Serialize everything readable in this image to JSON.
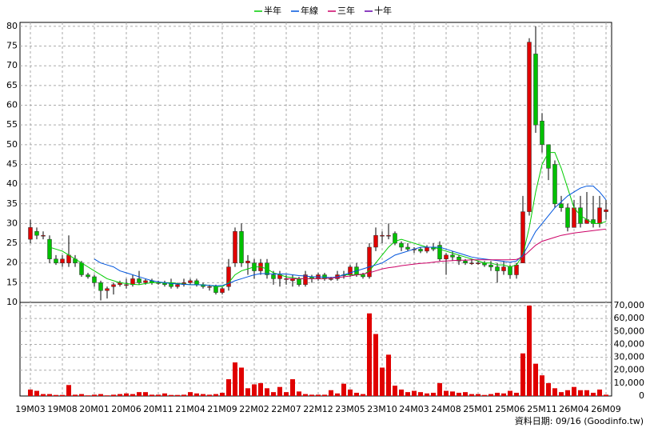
{
  "chart_data": {
    "type": "candlestick",
    "categories": [
      "19M03",
      null,
      null,
      null,
      null,
      "19M08",
      null,
      null,
      null,
      null,
      "20M01",
      null,
      null,
      null,
      null,
      "20M06",
      null,
      null,
      null,
      null,
      "20M11",
      null,
      null,
      null,
      null,
      "21M04",
      null,
      null,
      null,
      null,
      "21M09",
      null,
      null,
      null,
      null,
      "22M02",
      null,
      null,
      null,
      null,
      "22M07",
      null,
      null,
      null,
      null,
      "22M12",
      null,
      null,
      null,
      null,
      "23M05",
      null,
      null,
      null,
      null,
      "23M10",
      null,
      null,
      null,
      null,
      "24M03",
      null,
      null,
      null,
      null,
      "24M08",
      null,
      null,
      null,
      null,
      "25M01",
      null,
      null,
      null,
      null,
      "25M06",
      null,
      null,
      null,
      null,
      "25M11",
      null,
      null,
      null,
      null,
      "26M04",
      null,
      null,
      null,
      null,
      "26M09"
    ],
    "open": [
      26,
      28,
      27,
      26,
      21,
      20,
      20,
      21,
      20,
      17,
      16.5,
      15,
      13,
      14,
      14.5,
      14.5,
      14.5,
      16,
      15,
      15.5,
      15,
      15,
      15,
      14,
      14.5,
      15,
      15.5,
      14.5,
      14,
      14,
      12.5,
      14,
      20,
      28,
      20,
      20,
      18,
      20,
      17,
      16,
      16,
      15.5,
      16,
      14.5,
      16.5,
      16,
      17,
      16,
      16,
      17,
      17,
      19,
      17,
      16.5,
      24,
      27,
      27,
      27.5,
      25,
      24,
      23.5,
      23.5,
      23,
      24,
      24.5,
      21,
      22,
      21.5,
      20.5,
      20,
      20,
      20,
      19.5,
      19,
      18,
      19,
      17,
      20,
      33,
      73,
      56,
      50,
      45,
      35,
      34,
      29,
      34,
      30,
      31,
      30,
      33
    ],
    "high": [
      31,
      29,
      28,
      27,
      22,
      22,
      27,
      22,
      20.5,
      17.5,
      17,
      15.5,
      14,
      15,
      15.5,
      16,
      17,
      18,
      16,
      16,
      15.5,
      15.5,
      16,
      15,
      16,
      16,
      16,
      15,
      14.5,
      14.5,
      14,
      21,
      29,
      30,
      22,
      21,
      21,
      21,
      18,
      18,
      17,
      17,
      16.5,
      18,
      17,
      17.5,
      17.5,
      16.5,
      18,
      18,
      19.5,
      20,
      17.5,
      25,
      29,
      28,
      30,
      28,
      25.5,
      25,
      24,
      24,
      24.5,
      25,
      25.5,
      22.5,
      23,
      22,
      21,
      21,
      20.5,
      20.5,
      20.5,
      20,
      20.5,
      19.5,
      20,
      37,
      77,
      80,
      58,
      50,
      46,
      37,
      35,
      36,
      37,
      38,
      37,
      37,
      36
    ],
    "low": [
      25,
      26,
      26,
      20,
      19.5,
      19,
      19,
      19,
      16.5,
      16,
      14,
      10.5,
      11,
      12,
      14,
      13.5,
      14,
      14.5,
      14.5,
      14.5,
      14.5,
      14,
      13.5,
      13.5,
      14,
      14.5,
      14,
      13.5,
      13,
      12,
      12,
      13,
      19,
      19,
      17,
      16,
      17,
      16,
      14.5,
      14,
      14.5,
      14,
      14,
      14,
      15,
      15.5,
      15.5,
      15.5,
      15.5,
      16,
      16.5,
      16.5,
      16,
      16,
      23,
      25,
      26,
      24.5,
      23,
      23,
      22.5,
      22.5,
      22.5,
      23,
      20.5,
      17,
      20.5,
      19.5,
      19.5,
      19.5,
      19.5,
      19,
      18,
      15,
      17,
      16,
      16,
      20,
      32,
      53,
      48,
      41,
      34,
      33,
      28,
      29,
      29,
      30,
      29,
      29,
      31
    ],
    "close": [
      29,
      27,
      27,
      21,
      20,
      21,
      22,
      20,
      17,
      16.5,
      15,
      13,
      13.5,
      14.5,
      15,
      14.5,
      16,
      15,
      15.5,
      15,
      15,
      14.5,
      14,
      14.5,
      15,
      15.5,
      14.5,
      14,
      14,
      12.5,
      13.5,
      19,
      28,
      20,
      20.5,
      18,
      20,
      17,
      16,
      17,
      16,
      16,
      14.5,
      17,
      16,
      17,
      16,
      16,
      17,
      17,
      19,
      17,
      16.5,
      24,
      27,
      27,
      27,
      25,
      24,
      23.5,
      23.5,
      23,
      24,
      23.5,
      21,
      22,
      21.5,
      20.5,
      20,
      20,
      20,
      19.5,
      19,
      18,
      19,
      17,
      19.5,
      33,
      76,
      55,
      50,
      44,
      35,
      34,
      29,
      34,
      30,
      31,
      30,
      34,
      33.5
    ],
    "up_color": "#e00000",
    "down_color": "#00c000",
    "ylim": [
      10,
      81
    ],
    "yticks": [
      10,
      15,
      20,
      25,
      30,
      35,
      40,
      45,
      50,
      55,
      60,
      65,
      70,
      75,
      80
    ],
    "grid": true,
    "series": [
      {
        "name": "半年",
        "color": "#00cc00",
        "values": [
          null,
          null,
          null,
          24,
          23.5,
          23,
          22,
          21,
          20,
          19,
          18,
          17,
          16,
          15.5,
          15,
          14.8,
          14.6,
          14.5,
          14.8,
          15,
          15,
          15,
          15,
          14.8,
          14.7,
          14.5,
          14.5,
          14.5,
          14.3,
          14,
          14,
          15,
          17,
          18,
          18.5,
          19,
          19,
          18.5,
          17.5,
          17,
          16.5,
          16.3,
          16,
          16,
          16,
          16,
          16,
          16.2,
          16.5,
          17,
          17,
          17,
          17,
          18,
          20,
          22,
          24,
          25.5,
          26,
          25.5,
          25,
          24.5,
          24,
          24,
          23.5,
          23,
          22.5,
          22,
          21.5,
          21,
          20.5,
          20,
          20,
          19.5,
          19.5,
          19,
          19.5,
          22,
          29,
          38,
          45,
          48,
          48,
          44,
          39,
          34,
          32,
          31,
          30,
          30,
          30.5
        ]
      },
      {
        "name": "年線",
        "color": "#0055dd",
        "values": [
          null,
          null,
          null,
          null,
          null,
          null,
          null,
          null,
          null,
          null,
          21,
          20,
          19.5,
          19,
          18,
          17.5,
          17,
          16.5,
          16,
          15.5,
          15.2,
          15,
          14.8,
          14.7,
          14.6,
          14.5,
          14.5,
          14.4,
          14.3,
          14.2,
          14.3,
          14.8,
          15.5,
          16,
          16.5,
          17,
          17.3,
          17.3,
          17.2,
          17.2,
          17.2,
          17,
          16.8,
          16.7,
          16.5,
          16.5,
          16.4,
          16.3,
          16.5,
          17,
          17.5,
          18,
          18.5,
          19,
          19.5,
          20,
          21,
          22,
          22.5,
          23,
          23.5,
          24,
          24,
          24,
          24,
          23.5,
          23,
          22.5,
          22,
          21.5,
          21.2,
          21,
          20.8,
          20.6,
          20.4,
          20.2,
          20.5,
          22,
          25,
          28,
          30,
          32,
          34,
          35.5,
          37,
          38,
          39,
          39.5,
          39.5,
          38,
          36
        ]
      },
      {
        "name": "三年",
        "color": "#cc0066",
        "values": [
          null,
          null,
          null,
          null,
          null,
          null,
          null,
          null,
          null,
          null,
          null,
          null,
          null,
          null,
          null,
          null,
          null,
          null,
          null,
          null,
          null,
          null,
          null,
          null,
          null,
          null,
          null,
          null,
          null,
          null,
          null,
          null,
          null,
          null,
          null,
          null,
          null,
          null,
          null,
          null,
          16,
          16,
          16,
          16,
          16,
          16,
          16,
          16.2,
          16.3,
          16.5,
          16.7,
          17,
          17.2,
          17.5,
          18,
          18.5,
          18.8,
          19,
          19.3,
          19.5,
          19.7,
          19.9,
          20,
          20.2,
          20.4,
          20.5,
          20.6,
          20.7,
          20.7,
          20.8,
          20.8,
          20.8,
          20.8,
          20.8,
          20.8,
          20.8,
          20.9,
          21.5,
          23,
          24.5,
          25.5,
          26,
          26.5,
          27,
          27.3,
          27.6,
          27.8,
          28,
          28.2,
          28.4,
          28.6
        ]
      },
      {
        "name": "十年",
        "color": "#6600aa"
      }
    ],
    "volume": {
      "color": "#e00000",
      "values": [
        5000,
        4000,
        1500,
        1500,
        800,
        800,
        8500,
        1000,
        1500,
        500,
        1000,
        1500,
        500,
        1000,
        1500,
        2000,
        1500,
        3000,
        3000,
        1000,
        1000,
        2000,
        800,
        800,
        1000,
        3000,
        2000,
        1500,
        1000,
        1500,
        2500,
        13000,
        26000,
        22000,
        6000,
        9000,
        10000,
        6000,
        3000,
        7000,
        3000,
        13000,
        3500,
        1500,
        1000,
        1000,
        1000,
        4500,
        2000,
        9500,
        5000,
        2500,
        1500,
        64000,
        48000,
        22000,
        32000,
        8000,
        5000,
        3000,
        4000,
        3000,
        2000,
        2500,
        10000,
        4000,
        3500,
        2500,
        3000,
        1500,
        1500,
        800,
        1500,
        2500,
        2000,
        4000,
        2500,
        33000,
        70000,
        25000,
        16000,
        10000,
        6000,
        3000,
        4500,
        7000,
        4500,
        4500,
        2500,
        5000,
        1000
      ],
      "ylim": [
        0,
        72500
      ],
      "yticks": [
        0,
        {
          "value": 10000,
          "label": "10,000"
        },
        {
          "value": 20000,
          "label": "20,000"
        },
        {
          "value": 30000,
          "label": "30,000"
        },
        {
          "value": 40000,
          "label": "40,000"
        },
        {
          "value": 50000,
          "label": "50,000"
        },
        {
          "value": 60000,
          "label": "60,000"
        },
        {
          "value": 70000,
          "label": "70,000"
        }
      ]
    },
    "source": "資料日期: 09/16 (Goodinfo.tw)"
  }
}
